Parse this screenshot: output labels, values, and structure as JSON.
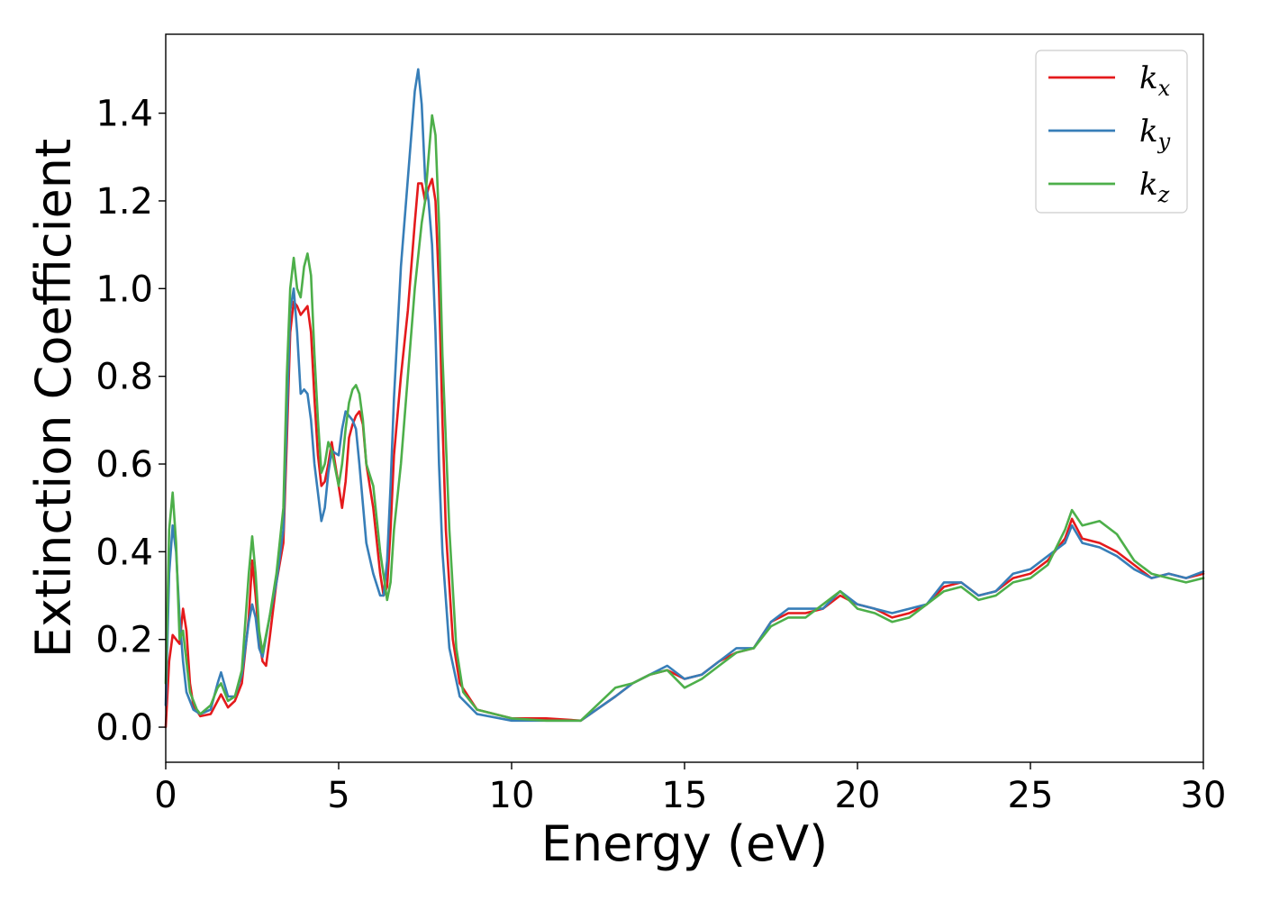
{
  "chart_data": {
    "type": "line",
    "title": "",
    "xlabel": "Energy (eV)",
    "ylabel": "Extinction Coefficient",
    "xlim": [
      0,
      30
    ],
    "ylim": [
      -0.08,
      1.58
    ],
    "xticks": [
      0,
      5,
      10,
      15,
      20,
      25,
      30
    ],
    "xtick_labels": [
      "0",
      "5",
      "10",
      "15",
      "20",
      "25",
      "30"
    ],
    "yticks": [
      0.0,
      0.2,
      0.4,
      0.6,
      0.8,
      1.0,
      1.2,
      1.4
    ],
    "ytick_labels": [
      "0.0",
      "0.2",
      "0.4",
      "0.6",
      "0.8",
      "1.0",
      "1.2",
      "1.4"
    ],
    "grid": false,
    "legend": "top-right",
    "series": [
      {
        "name": "k_x",
        "label_main": "k",
        "label_sub": "x",
        "color": "#e41a1c",
        "points": [
          [
            0,
            0.0
          ],
          [
            0.1,
            0.15
          ],
          [
            0.2,
            0.21
          ],
          [
            0.3,
            0.2
          ],
          [
            0.4,
            0.19
          ],
          [
            0.5,
            0.27
          ],
          [
            0.6,
            0.22
          ],
          [
            0.7,
            0.1
          ],
          [
            0.8,
            0.05
          ],
          [
            1.0,
            0.025
          ],
          [
            1.3,
            0.03
          ],
          [
            1.5,
            0.06
          ],
          [
            1.6,
            0.075
          ],
          [
            1.8,
            0.045
          ],
          [
            2.0,
            0.06
          ],
          [
            2.2,
            0.1
          ],
          [
            2.4,
            0.25
          ],
          [
            2.5,
            0.38
          ],
          [
            2.6,
            0.3
          ],
          [
            2.7,
            0.2
          ],
          [
            2.8,
            0.15
          ],
          [
            2.9,
            0.14
          ],
          [
            3.0,
            0.2
          ],
          [
            3.2,
            0.33
          ],
          [
            3.4,
            0.42
          ],
          [
            3.5,
            0.65
          ],
          [
            3.6,
            0.9
          ],
          [
            3.7,
            0.97
          ],
          [
            3.8,
            0.96
          ],
          [
            3.9,
            0.94
          ],
          [
            4.0,
            0.95
          ],
          [
            4.1,
            0.96
          ],
          [
            4.2,
            0.9
          ],
          [
            4.3,
            0.75
          ],
          [
            4.4,
            0.62
          ],
          [
            4.5,
            0.55
          ],
          [
            4.6,
            0.56
          ],
          [
            4.7,
            0.6
          ],
          [
            4.8,
            0.65
          ],
          [
            5.0,
            0.55
          ],
          [
            5.1,
            0.5
          ],
          [
            5.2,
            0.56
          ],
          [
            5.3,
            0.66
          ],
          [
            5.4,
            0.69
          ],
          [
            5.5,
            0.71
          ],
          [
            5.6,
            0.72
          ],
          [
            5.7,
            0.69
          ],
          [
            5.8,
            0.6
          ],
          [
            6.0,
            0.5
          ],
          [
            6.2,
            0.35
          ],
          [
            6.3,
            0.3
          ],
          [
            6.4,
            0.32
          ],
          [
            6.5,
            0.45
          ],
          [
            6.6,
            0.62
          ],
          [
            6.8,
            0.8
          ],
          [
            7.0,
            0.95
          ],
          [
            7.2,
            1.15
          ],
          [
            7.3,
            1.24
          ],
          [
            7.4,
            1.24
          ],
          [
            7.5,
            1.2
          ],
          [
            7.6,
            1.23
          ],
          [
            7.7,
            1.25
          ],
          [
            7.8,
            1.2
          ],
          [
            7.9,
            1.0
          ],
          [
            8.0,
            0.7
          ],
          [
            8.1,
            0.45
          ],
          [
            8.3,
            0.2
          ],
          [
            8.5,
            0.1
          ],
          [
            9.0,
            0.04
          ],
          [
            10.0,
            0.02
          ],
          [
            11.0,
            0.02
          ],
          [
            12.0,
            0.015
          ],
          [
            13.0,
            0.07
          ],
          [
            13.5,
            0.1
          ],
          [
            14.0,
            0.12
          ],
          [
            14.5,
            0.13
          ],
          [
            15.0,
            0.11
          ],
          [
            15.5,
            0.12
          ],
          [
            16.0,
            0.15
          ],
          [
            16.5,
            0.17
          ],
          [
            17.0,
            0.18
          ],
          [
            17.5,
            0.24
          ],
          [
            18.0,
            0.26
          ],
          [
            18.5,
            0.26
          ],
          [
            19.0,
            0.27
          ],
          [
            19.5,
            0.3
          ],
          [
            20.0,
            0.28
          ],
          [
            20.5,
            0.27
          ],
          [
            21.0,
            0.25
          ],
          [
            21.5,
            0.26
          ],
          [
            22.0,
            0.28
          ],
          [
            22.5,
            0.32
          ],
          [
            23.0,
            0.33
          ],
          [
            23.5,
            0.3
          ],
          [
            24.0,
            0.31
          ],
          [
            24.5,
            0.34
          ],
          [
            25.0,
            0.35
          ],
          [
            25.5,
            0.38
          ],
          [
            26.0,
            0.43
          ],
          [
            26.2,
            0.475
          ],
          [
            26.5,
            0.43
          ],
          [
            27.0,
            0.42
          ],
          [
            27.5,
            0.4
          ],
          [
            28.0,
            0.37
          ],
          [
            28.5,
            0.34
          ],
          [
            29.0,
            0.35
          ],
          [
            29.5,
            0.34
          ],
          [
            30.0,
            0.35
          ]
        ]
      },
      {
        "name": "k_y",
        "label_main": "k",
        "label_sub": "y",
        "color": "#377eb8",
        "points": [
          [
            0,
            0.05
          ],
          [
            0.1,
            0.35
          ],
          [
            0.2,
            0.46
          ],
          [
            0.3,
            0.4
          ],
          [
            0.4,
            0.25
          ],
          [
            0.5,
            0.15
          ],
          [
            0.6,
            0.08
          ],
          [
            0.8,
            0.04
          ],
          [
            1.0,
            0.03
          ],
          [
            1.3,
            0.04
          ],
          [
            1.5,
            0.1
          ],
          [
            1.6,
            0.125
          ],
          [
            1.8,
            0.07
          ],
          [
            2.0,
            0.07
          ],
          [
            2.2,
            0.12
          ],
          [
            2.4,
            0.24
          ],
          [
            2.5,
            0.28
          ],
          [
            2.6,
            0.25
          ],
          [
            2.7,
            0.18
          ],
          [
            2.8,
            0.16
          ],
          [
            3.0,
            0.25
          ],
          [
            3.2,
            0.33
          ],
          [
            3.4,
            0.45
          ],
          [
            3.5,
            0.7
          ],
          [
            3.6,
            0.95
          ],
          [
            3.7,
            1.0
          ],
          [
            3.8,
            0.9
          ],
          [
            3.9,
            0.76
          ],
          [
            4.0,
            0.77
          ],
          [
            4.1,
            0.76
          ],
          [
            4.2,
            0.7
          ],
          [
            4.3,
            0.6
          ],
          [
            4.5,
            0.47
          ],
          [
            4.6,
            0.5
          ],
          [
            4.7,
            0.58
          ],
          [
            4.8,
            0.63
          ],
          [
            5.0,
            0.62
          ],
          [
            5.1,
            0.68
          ],
          [
            5.2,
            0.72
          ],
          [
            5.3,
            0.71
          ],
          [
            5.4,
            0.7
          ],
          [
            5.5,
            0.68
          ],
          [
            5.6,
            0.6
          ],
          [
            5.8,
            0.42
          ],
          [
            6.0,
            0.35
          ],
          [
            6.2,
            0.3
          ],
          [
            6.3,
            0.3
          ],
          [
            6.4,
            0.38
          ],
          [
            6.5,
            0.55
          ],
          [
            6.6,
            0.75
          ],
          [
            6.8,
            1.05
          ],
          [
            7.0,
            1.25
          ],
          [
            7.2,
            1.45
          ],
          [
            7.3,
            1.5
          ],
          [
            7.4,
            1.42
          ],
          [
            7.5,
            1.25
          ],
          [
            7.6,
            1.2
          ],
          [
            7.7,
            1.1
          ],
          [
            7.8,
            0.9
          ],
          [
            7.9,
            0.6
          ],
          [
            8.0,
            0.4
          ],
          [
            8.2,
            0.18
          ],
          [
            8.5,
            0.07
          ],
          [
            9.0,
            0.03
          ],
          [
            10.0,
            0.015
          ],
          [
            11.0,
            0.015
          ],
          [
            12.0,
            0.015
          ],
          [
            13.0,
            0.07
          ],
          [
            13.5,
            0.1
          ],
          [
            14.0,
            0.12
          ],
          [
            14.5,
            0.14
          ],
          [
            15.0,
            0.11
          ],
          [
            15.5,
            0.12
          ],
          [
            16.0,
            0.15
          ],
          [
            16.5,
            0.18
          ],
          [
            17.0,
            0.18
          ],
          [
            17.5,
            0.24
          ],
          [
            18.0,
            0.27
          ],
          [
            18.5,
            0.27
          ],
          [
            19.0,
            0.27
          ],
          [
            19.5,
            0.31
          ],
          [
            20.0,
            0.28
          ],
          [
            20.5,
            0.27
          ],
          [
            21.0,
            0.26
          ],
          [
            21.5,
            0.27
          ],
          [
            22.0,
            0.28
          ],
          [
            22.5,
            0.33
          ],
          [
            23.0,
            0.33
          ],
          [
            23.5,
            0.3
          ],
          [
            24.0,
            0.31
          ],
          [
            24.5,
            0.35
          ],
          [
            25.0,
            0.36
          ],
          [
            25.5,
            0.39
          ],
          [
            26.0,
            0.42
          ],
          [
            26.2,
            0.46
          ],
          [
            26.5,
            0.42
          ],
          [
            27.0,
            0.41
          ],
          [
            27.5,
            0.39
          ],
          [
            28.0,
            0.36
          ],
          [
            28.5,
            0.34
          ],
          [
            29.0,
            0.35
          ],
          [
            29.5,
            0.34
          ],
          [
            30.0,
            0.355
          ]
        ]
      },
      {
        "name": "k_z",
        "label_main": "k",
        "label_sub": "z",
        "color": "#4daf4a",
        "points": [
          [
            0,
            0.1
          ],
          [
            0.1,
            0.45
          ],
          [
            0.2,
            0.535
          ],
          [
            0.3,
            0.42
          ],
          [
            0.4,
            0.2
          ],
          [
            0.5,
            0.22
          ],
          [
            0.6,
            0.15
          ],
          [
            0.7,
            0.08
          ],
          [
            0.9,
            0.04
          ],
          [
            1.0,
            0.03
          ],
          [
            1.3,
            0.05
          ],
          [
            1.5,
            0.09
          ],
          [
            1.6,
            0.1
          ],
          [
            1.8,
            0.06
          ],
          [
            2.0,
            0.07
          ],
          [
            2.2,
            0.13
          ],
          [
            2.4,
            0.35
          ],
          [
            2.5,
            0.435
          ],
          [
            2.6,
            0.35
          ],
          [
            2.7,
            0.22
          ],
          [
            2.8,
            0.17
          ],
          [
            3.0,
            0.25
          ],
          [
            3.2,
            0.35
          ],
          [
            3.4,
            0.5
          ],
          [
            3.5,
            0.8
          ],
          [
            3.6,
            1.0
          ],
          [
            3.7,
            1.07
          ],
          [
            3.8,
            1.0
          ],
          [
            3.9,
            0.98
          ],
          [
            4.0,
            1.05
          ],
          [
            4.1,
            1.08
          ],
          [
            4.2,
            1.03
          ],
          [
            4.3,
            0.85
          ],
          [
            4.4,
            0.7
          ],
          [
            4.5,
            0.58
          ],
          [
            4.6,
            0.6
          ],
          [
            4.7,
            0.65
          ],
          [
            4.8,
            0.63
          ],
          [
            5.0,
            0.55
          ],
          [
            5.1,
            0.6
          ],
          [
            5.2,
            0.68
          ],
          [
            5.3,
            0.74
          ],
          [
            5.4,
            0.77
          ],
          [
            5.5,
            0.78
          ],
          [
            5.6,
            0.76
          ],
          [
            5.7,
            0.7
          ],
          [
            5.8,
            0.6
          ],
          [
            6.0,
            0.55
          ],
          [
            6.2,
            0.4
          ],
          [
            6.4,
            0.29
          ],
          [
            6.5,
            0.33
          ],
          [
            6.6,
            0.45
          ],
          [
            6.8,
            0.6
          ],
          [
            7.0,
            0.8
          ],
          [
            7.2,
            1.0
          ],
          [
            7.4,
            1.15
          ],
          [
            7.5,
            1.2
          ],
          [
            7.6,
            1.3
          ],
          [
            7.7,
            1.395
          ],
          [
            7.8,
            1.35
          ],
          [
            7.9,
            1.15
          ],
          [
            8.0,
            0.85
          ],
          [
            8.2,
            0.45
          ],
          [
            8.4,
            0.18
          ],
          [
            8.6,
            0.08
          ],
          [
            9.0,
            0.04
          ],
          [
            10.0,
            0.02
          ],
          [
            11.0,
            0.015
          ],
          [
            12.0,
            0.015
          ],
          [
            13.0,
            0.09
          ],
          [
            13.5,
            0.1
          ],
          [
            14.0,
            0.12
          ],
          [
            14.5,
            0.13
          ],
          [
            15.0,
            0.09
          ],
          [
            15.5,
            0.11
          ],
          [
            16.0,
            0.14
          ],
          [
            16.5,
            0.17
          ],
          [
            17.0,
            0.18
          ],
          [
            17.5,
            0.23
          ],
          [
            18.0,
            0.25
          ],
          [
            18.5,
            0.25
          ],
          [
            19.0,
            0.28
          ],
          [
            19.5,
            0.31
          ],
          [
            20.0,
            0.27
          ],
          [
            20.5,
            0.26
          ],
          [
            21.0,
            0.24
          ],
          [
            21.5,
            0.25
          ],
          [
            22.0,
            0.28
          ],
          [
            22.5,
            0.31
          ],
          [
            23.0,
            0.32
          ],
          [
            23.5,
            0.29
          ],
          [
            24.0,
            0.3
          ],
          [
            24.5,
            0.33
          ],
          [
            25.0,
            0.34
          ],
          [
            25.5,
            0.37
          ],
          [
            26.0,
            0.45
          ],
          [
            26.2,
            0.495
          ],
          [
            26.5,
            0.46
          ],
          [
            27.0,
            0.47
          ],
          [
            27.5,
            0.44
          ],
          [
            28.0,
            0.38
          ],
          [
            28.5,
            0.35
          ],
          [
            29.0,
            0.34
          ],
          [
            29.5,
            0.33
          ],
          [
            30.0,
            0.34
          ]
        ]
      }
    ]
  }
}
